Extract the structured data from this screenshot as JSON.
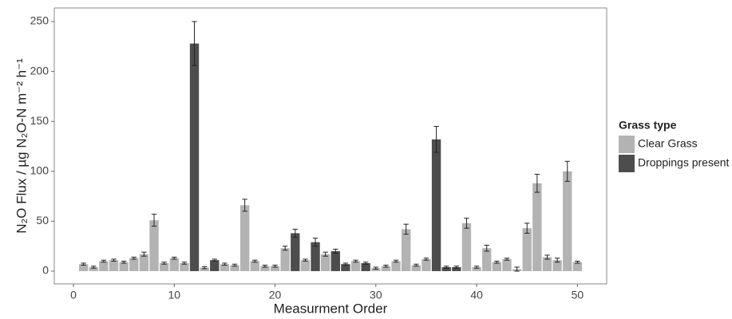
{
  "chart_data": {
    "type": "bar",
    "xlabel": "Measurment Order",
    "ylabel": "N₂O Flux  /  µg N₂O-N m⁻² h⁻¹",
    "legend_title": "Grass type",
    "legend_position": "right",
    "x": [
      1,
      2,
      3,
      4,
      5,
      6,
      7,
      8,
      9,
      10,
      11,
      12,
      13,
      14,
      15,
      16,
      17,
      18,
      19,
      20,
      21,
      22,
      23,
      24,
      25,
      26,
      27,
      28,
      29,
      30,
      31,
      32,
      33,
      34,
      35,
      36,
      37,
      38,
      39,
      40,
      41,
      42,
      43,
      44,
      45,
      46,
      47,
      48,
      49,
      50
    ],
    "series": [
      {
        "name": "Clear Grass",
        "color": "#b3b3b3",
        "values": [
          7,
          4,
          10,
          11,
          9,
          13,
          17,
          51,
          8,
          13,
          8,
          null,
          3.5,
          null,
          7,
          6,
          66,
          10,
          5,
          5,
          23,
          null,
          11,
          null,
          17,
          null,
          null,
          10,
          null,
          3,
          5,
          10,
          42,
          6,
          12,
          null,
          null,
          null,
          48,
          4,
          23,
          9,
          12,
          2,
          43,
          88,
          14,
          11,
          100,
          9
        ],
        "errors": [
          1,
          1,
          1,
          1,
          1,
          1,
          2,
          6,
          1,
          1,
          1,
          null,
          1,
          null,
          1,
          1,
          6,
          1,
          1,
          1,
          2,
          null,
          1,
          null,
          2,
          null,
          null,
          1,
          null,
          1,
          1,
          1,
          5,
          1,
          1,
          null,
          null,
          null,
          5,
          1,
          3,
          1,
          1,
          2,
          5,
          9,
          2,
          2,
          10,
          1
        ]
      },
      {
        "name": "Droppings present",
        "color": "#4d4d4d",
        "values": [
          null,
          null,
          null,
          null,
          null,
          null,
          null,
          null,
          null,
          null,
          null,
          228,
          null,
          11,
          null,
          null,
          null,
          null,
          null,
          null,
          null,
          38,
          null,
          29,
          null,
          20,
          7,
          null,
          8,
          null,
          null,
          null,
          null,
          null,
          null,
          132,
          4,
          4,
          null,
          null,
          null,
          null,
          null,
          null,
          null,
          null,
          null,
          null,
          null,
          null
        ],
        "errors": [
          null,
          null,
          null,
          null,
          null,
          null,
          null,
          null,
          null,
          null,
          null,
          22,
          null,
          1,
          null,
          null,
          null,
          null,
          null,
          null,
          null,
          4,
          null,
          4,
          null,
          2,
          1,
          null,
          1,
          null,
          null,
          null,
          null,
          null,
          null,
          13,
          1,
          1,
          null,
          null,
          null,
          null,
          null,
          null,
          null,
          null,
          null,
          null,
          null,
          null
        ]
      }
    ],
    "bar_width": 0.9,
    "xlim": [
      -1.9,
      52.9
    ],
    "xticks": [
      0,
      10,
      20,
      30,
      40,
      50
    ],
    "ylim": [
      -12.8,
      263.6
    ],
    "yticks": [
      0,
      50,
      100,
      150,
      200,
      250
    ],
    "grid": false
  }
}
